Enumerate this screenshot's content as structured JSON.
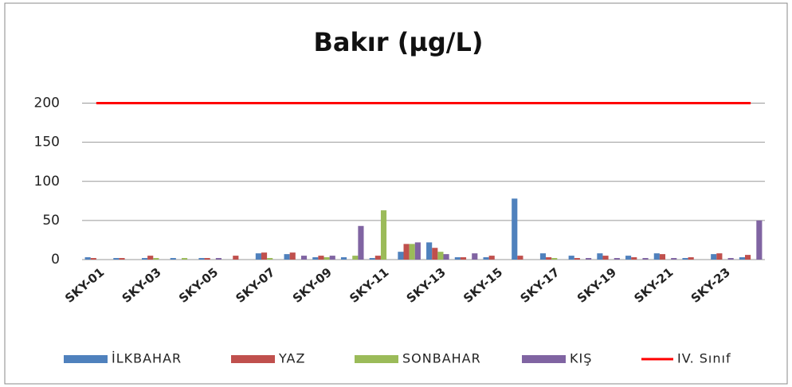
{
  "chart_data": {
    "type": "bar",
    "title": "Bakır (µg/L)",
    "categories": [
      "SKY-01",
      null,
      "SKY-03",
      null,
      "SKY-05",
      null,
      "SKY-07",
      null,
      "SKY-09",
      null,
      "SKY-11",
      null,
      "SKY-13",
      null,
      "SKY-15",
      null,
      "SKY-17",
      null,
      "SKY-19",
      null,
      "SKY-21",
      null,
      "SKY-23",
      null
    ],
    "series": [
      {
        "name": "İLKBAHAR",
        "color": "#4f81bd",
        "values": [
          3,
          2,
          2,
          2,
          2,
          0,
          8,
          7,
          3,
          3,
          2,
          10,
          22,
          3,
          3,
          78,
          8,
          5,
          8,
          5,
          8,
          2,
          7,
          3
        ]
      },
      {
        "name": "YAZ",
        "color": "#c0504d",
        "values": [
          2,
          2,
          5,
          0,
          2,
          5,
          9,
          9,
          5,
          0,
          5,
          20,
          15,
          3,
          5,
          5,
          3,
          2,
          5,
          3,
          7,
          3,
          8,
          6
        ]
      },
      {
        "name": "SONBAHAR",
        "color": "#9bbb59",
        "values": [
          0,
          0,
          2,
          2,
          0,
          0,
          2,
          0,
          3,
          5,
          63,
          20,
          10,
          0,
          0,
          0,
          2,
          0,
          0,
          0,
          0,
          0,
          0,
          0
        ]
      },
      {
        "name": "KIŞ",
        "color": "#8064a2",
        "values": [
          0,
          0,
          0,
          0,
          2,
          0,
          0,
          5,
          5,
          43,
          0,
          22,
          7,
          8,
          0,
          0,
          0,
          2,
          2,
          2,
          2,
          0,
          2,
          50
        ]
      },
      {
        "name": "IV. Sınıf",
        "color": "#ff0000",
        "type": "line",
        "values": [
          200,
          200,
          200,
          200,
          200,
          200,
          200,
          200,
          200,
          200,
          200,
          200,
          200,
          200,
          200,
          200,
          200,
          200,
          200,
          200,
          200,
          200,
          200,
          200
        ]
      }
    ],
    "ylim": [
      0,
      225
    ],
    "yticks": [
      0,
      50,
      100,
      150,
      200
    ],
    "grid": true,
    "legend": "bottom"
  }
}
